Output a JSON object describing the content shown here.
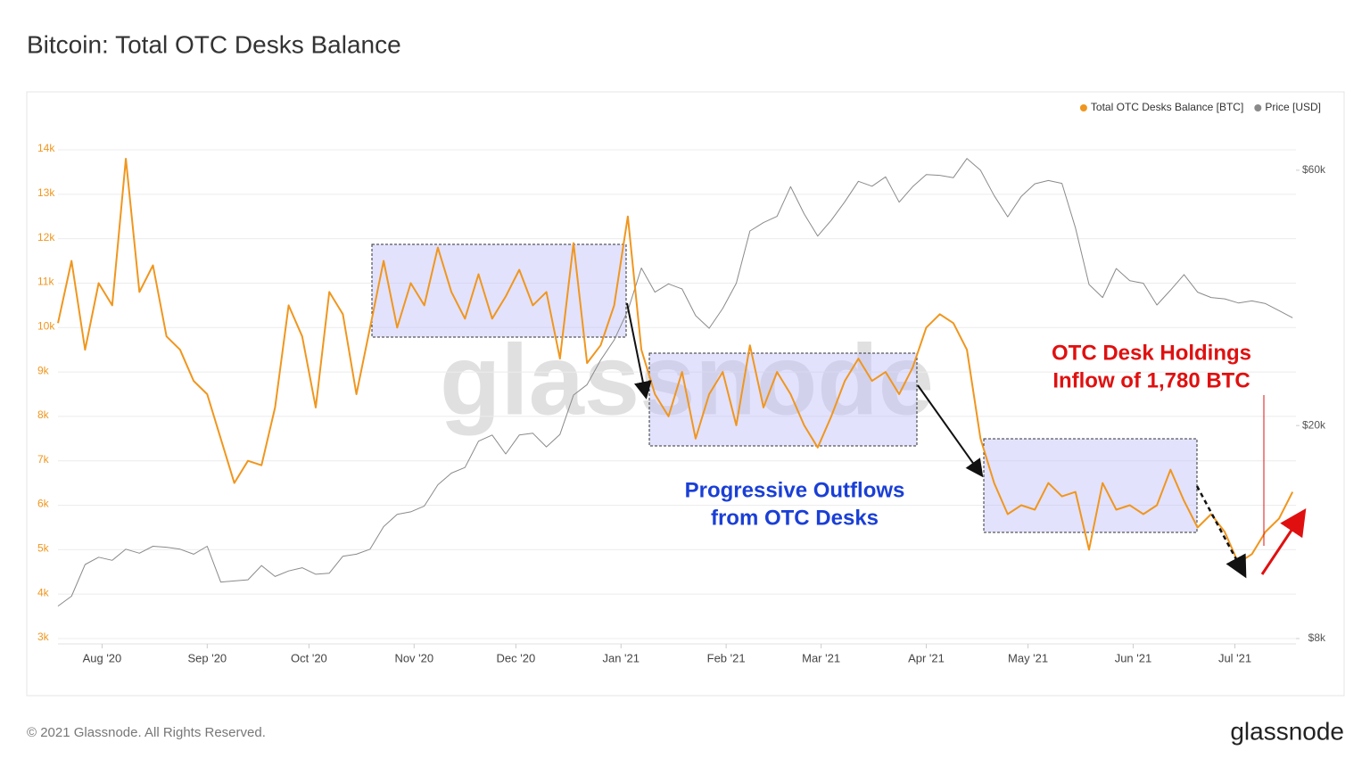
{
  "header": {
    "title": "Bitcoin: Total OTC Desks Balance"
  },
  "chart_data": {
    "type": "line",
    "x": [
      0,
      4,
      8,
      12,
      16,
      20,
      24,
      28,
      32,
      36,
      40,
      44,
      48,
      52,
      56,
      60,
      64,
      68,
      72,
      76,
      80,
      84,
      88,
      92,
      96,
      100,
      104,
      108,
      112,
      116,
      120,
      124,
      128,
      132,
      136,
      140,
      144,
      148,
      152,
      156,
      160,
      164,
      168,
      172,
      176,
      180,
      184,
      188,
      192,
      196,
      200,
      204,
      208,
      212,
      216,
      220,
      224,
      228,
      232,
      236,
      240,
      244,
      248,
      252,
      256,
      260,
      264,
      268,
      272,
      276,
      280,
      284,
      288,
      292,
      296,
      300,
      304,
      308,
      312,
      316,
      320,
      324,
      328,
      332,
      336,
      340,
      344,
      348,
      352,
      356,
      360,
      364
    ],
    "xlim": [
      0,
      365
    ],
    "xticks": [
      {
        "value": 13,
        "label": "Aug '20"
      },
      {
        "value": 44,
        "label": "Sep '20"
      },
      {
        "value": 74,
        "label": "Oct '20"
      },
      {
        "value": 105,
        "label": "Nov '20"
      },
      {
        "value": 135,
        "label": "Dec '20"
      },
      {
        "value": 166,
        "label": "Jan '21"
      },
      {
        "value": 197,
        "label": "Feb '21"
      },
      {
        "value": 225,
        "label": "Mar '21"
      },
      {
        "value": 256,
        "label": "Apr '21"
      },
      {
        "value": 286,
        "label": "May '21"
      },
      {
        "value": 317,
        "label": "Jun '21"
      },
      {
        "value": 347,
        "label": "Jul '21"
      }
    ],
    "ylim": [
      3000,
      14000
    ],
    "yticks": [
      {
        "value": 3000,
        "label": "3k"
      },
      {
        "value": 4000,
        "label": "4k"
      },
      {
        "value": 5000,
        "label": "5k"
      },
      {
        "value": 6000,
        "label": "6k"
      },
      {
        "value": 7000,
        "label": "7k"
      },
      {
        "value": 8000,
        "label": "8k"
      },
      {
        "value": 9000,
        "label": "9k"
      },
      {
        "value": 10000,
        "label": "10k"
      },
      {
        "value": 11000,
        "label": "11k"
      },
      {
        "value": 12000,
        "label": "12k"
      },
      {
        "value": 13000,
        "label": "13k"
      },
      {
        "value": 14000,
        "label": "14k"
      }
    ],
    "y2lim": [
      8000,
      65500
    ],
    "y2scale": "log",
    "y2ticks": [
      {
        "value": 8000,
        "label": "$8k"
      },
      {
        "value": 20000,
        "label": "$20k"
      },
      {
        "value": 60000,
        "label": "$60k"
      }
    ],
    "grid": true,
    "legend": "top-right",
    "series": [
      {
        "name": "Total OTC Desks Balance [BTC]",
        "color": "#f0961e",
        "values": [
          10100,
          11500,
          9500,
          11000,
          10500,
          13800,
          10800,
          11400,
          9800,
          9500,
          8800,
          8500,
          7500,
          6500,
          7000,
          6900,
          8200,
          10500,
          9800,
          8200,
          10800,
          10300,
          8500,
          10000,
          11500,
          10000,
          11000,
          10500,
          11800,
          10800,
          10200,
          11200,
          10200,
          10700,
          11300,
          10500,
          10800,
          9300,
          11900,
          9200,
          9600,
          10500,
          12500,
          9500,
          8500,
          8000,
          9000,
          7500,
          8500,
          9000,
          7800,
          9600,
          8200,
          9000,
          8500,
          7800,
          7300,
          8000,
          8800,
          9300,
          8800,
          9000,
          8500,
          9100,
          10000,
          10300,
          10100,
          9500,
          7500,
          6500,
          5800,
          6000,
          5900,
          6500,
          6200,
          6300,
          5000,
          6500,
          5900,
          6000,
          5800,
          6000,
          6800,
          6100,
          5500,
          5800,
          5400,
          4700,
          4900,
          5400,
          5700,
          6300
        ]
      },
      {
        "name": "Price [USD]",
        "color": "#8a8a8a",
        "axis": "y2",
        "values": [
          9200,
          9600,
          11000,
          11350,
          11200,
          11750,
          11550,
          11900,
          11850,
          11750,
          11500,
          11900,
          10200,
          10250,
          10300,
          10950,
          10450,
          10700,
          10850,
          10550,
          10600,
          11400,
          11500,
          11750,
          12950,
          13650,
          13800,
          14150,
          15500,
          16300,
          16700,
          18700,
          19200,
          17700,
          19200,
          19350,
          18250,
          19250,
          22800,
          23850,
          26500,
          28900,
          32800,
          39400,
          35500,
          36800,
          36000,
          32100,
          30400,
          33100,
          36900,
          46200,
          47900,
          49200,
          55900,
          49700,
          45200,
          48400,
          52400,
          57200,
          56000,
          58300,
          52300,
          55900,
          58900,
          58700,
          58100,
          63100,
          60000,
          53800,
          49100,
          53600,
          56600,
          57400,
          56700,
          46800,
          36700,
          34700,
          39300,
          37300,
          36900,
          33600,
          35800,
          38300,
          35500,
          34700,
          34500,
          33900,
          34200,
          33800,
          32800,
          31800
        ]
      }
    ],
    "annotations": [
      "Progressive Outflows",
      "from OTC Desks",
      "OTC Desk Holdings",
      "Inflow of 1,780 BTC"
    ],
    "watermark": "glassnode"
  },
  "footer": {
    "copyright": "© 2021 Glassnode. All Rights Reserved.",
    "logo": "glassnode"
  }
}
